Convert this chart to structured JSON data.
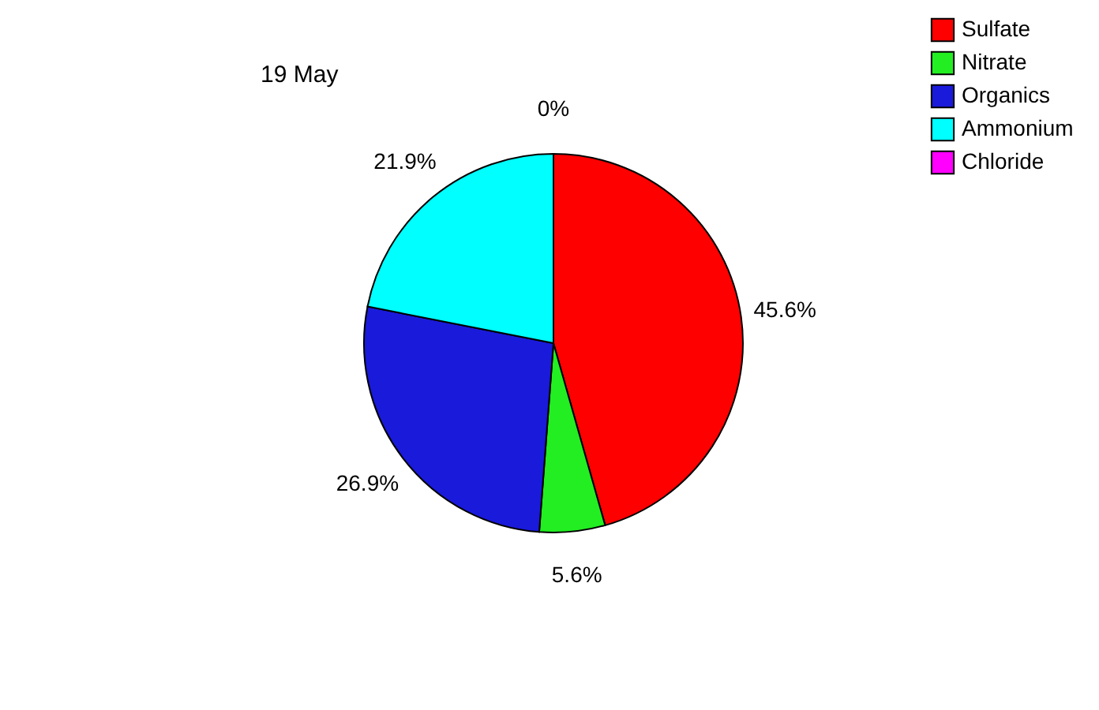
{
  "chart_data": {
    "type": "pie",
    "title": "19 May",
    "categories": [
      "Sulfate",
      "Nitrate",
      "Organics",
      "Ammonium",
      "Chloride"
    ],
    "values": [
      45.6,
      5.6,
      26.9,
      21.9,
      0
    ],
    "colors": [
      "#ff0000",
      "#22ee22",
      "#1a1adb",
      "#00ffff",
      "#ff00ff"
    ],
    "value_labels": [
      "45.6%",
      "5.6%",
      "26.9%",
      "21.9%",
      "0%"
    ],
    "legend": "top right"
  }
}
